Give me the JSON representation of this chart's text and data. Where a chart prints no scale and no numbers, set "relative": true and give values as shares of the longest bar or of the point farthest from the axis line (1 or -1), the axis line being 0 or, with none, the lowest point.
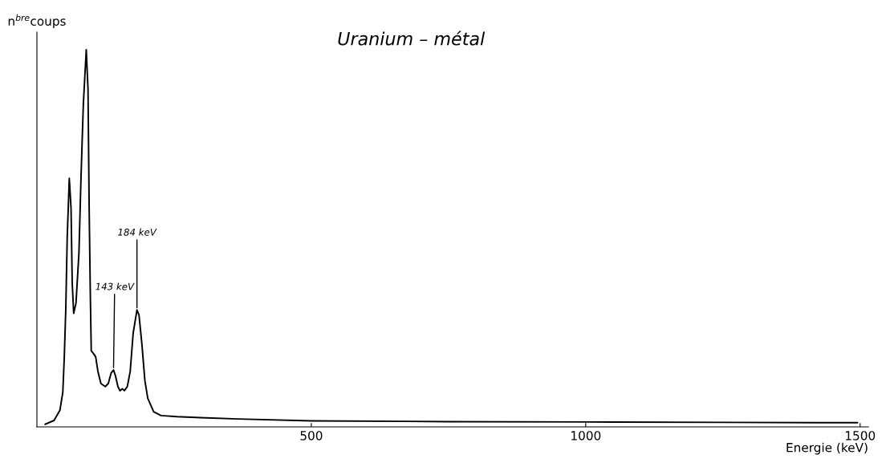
{
  "chart_data": {
    "type": "line",
    "title": "Uranium – métal",
    "xlabel": "Energie (keV)",
    "ylabel": "n$^{bre}$coups",
    "relative": true,
    "xlim": [
      0,
      1515
    ],
    "xticks": [
      500,
      1000,
      1500
    ],
    "grid": false,
    "legend": false,
    "line_style": "solid",
    "marker": "none",
    "series": [
      {
        "color": "#000000",
        "x": [
          15.2,
          31.2,
          41.9,
          47.2,
          49.9,
          52.6,
          55.2,
          59.0,
          62.2,
          64.3,
          67.0,
          71.2,
          76.6,
          80.3,
          84.6,
          89.9,
          93.1,
          95.2,
          97.4,
          99.0,
          103.3,
          107.0,
          111.2,
          116.6,
          124.6,
          130.0,
          135.3,
          139.6,
          143.2,
          147.6,
          151.3,
          155.6,
          159.4,
          164.7,
          170.0,
          175.4,
          182.3,
          186.0,
          191.4,
          196.7,
          202.0,
          212.7,
          226.0,
          255.3,
          308.6,
          366.4,
          500,
          750,
          1000,
          1250,
          1495
        ],
        "values": [
          0.007,
          0.017,
          0.044,
          0.092,
          0.186,
          0.312,
          0.501,
          0.659,
          0.58,
          0.383,
          0.301,
          0.328,
          0.462,
          0.659,
          0.856,
          1.0,
          0.896,
          0.58,
          0.344,
          0.202,
          0.194,
          0.186,
          0.147,
          0.115,
          0.107,
          0.115,
          0.143,
          0.151,
          0.135,
          0.107,
          0.096,
          0.101,
          0.096,
          0.107,
          0.147,
          0.249,
          0.31,
          0.297,
          0.218,
          0.123,
          0.076,
          0.04,
          0.03,
          0.027,
          0.024,
          0.021,
          0.016,
          0.014,
          0.013,
          0.012,
          0.011
        ]
      }
    ],
    "annotations": [
      {
        "text": "143 keV",
        "x": 139.6,
        "y": 0.151
      },
      {
        "text": "184 keV",
        "x": 182.3,
        "y": 0.31
      }
    ]
  }
}
